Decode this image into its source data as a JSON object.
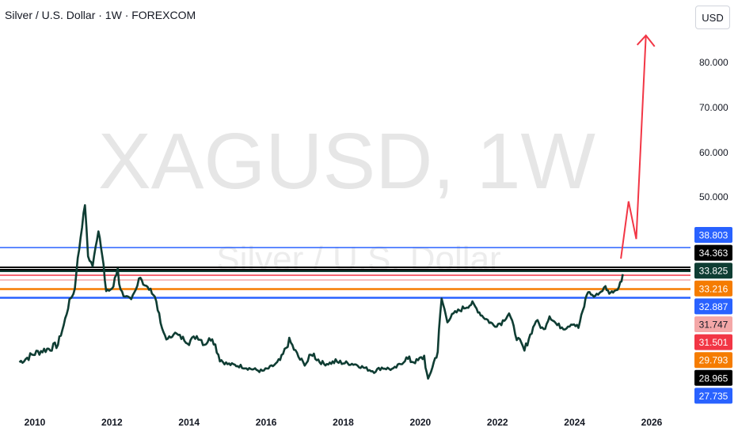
{
  "header": {
    "title": "Silver / U.S. Dollar · 1W · FOREXCOM",
    "currency_button": "USD"
  },
  "watermark": {
    "symbol": "XAGUSD, 1W",
    "name": "Silver / U.S. Dollar"
  },
  "colors": {
    "price_line": "#0f3d33",
    "blue_level": "#2962ff",
    "black_level": "#000000",
    "pink_level": "#f4a7a7",
    "red_level": "#f23645",
    "orange_level": "#f57c00",
    "arrow": "#f23645"
  },
  "chart_data": {
    "type": "line",
    "title": "Silver / U.S. Dollar · 1W · FOREXCOM",
    "x_ticks": [
      "2010",
      "2012",
      "2014",
      "2016",
      "2018",
      "2020",
      "2022",
      "2024",
      "2026"
    ],
    "y_ticks": [
      "80.000",
      "70.000",
      "60.000",
      "50.000"
    ],
    "ylim_note": "non-linear price scale; visible range approx 10 to 90 USD",
    "series": [
      {
        "points": [
          [
            2009.6,
            17.0
          ],
          [
            2009.8,
            17.6
          ],
          [
            2010.0,
            18.2
          ],
          [
            2010.2,
            18.6
          ],
          [
            2010.4,
            18.9
          ],
          [
            2010.6,
            19.4
          ],
          [
            2010.75,
            23.0
          ],
          [
            2010.9,
            28.0
          ],
          [
            2011.0,
            30.0
          ],
          [
            2011.15,
            38.5
          ],
          [
            2011.3,
            48.4
          ],
          [
            2011.38,
            37.0
          ],
          [
            2011.5,
            35.0
          ],
          [
            2011.65,
            42.5
          ],
          [
            2011.75,
            37.5
          ],
          [
            2011.85,
            31.0
          ],
          [
            2012.0,
            32.0
          ],
          [
            2012.15,
            34.5
          ],
          [
            2012.3,
            29.5
          ],
          [
            2012.5,
            28.0
          ],
          [
            2012.7,
            34.0
          ],
          [
            2012.85,
            33.0
          ],
          [
            2013.0,
            31.5
          ],
          [
            2013.15,
            28.0
          ],
          [
            2013.3,
            22.0
          ],
          [
            2013.45,
            20.0
          ],
          [
            2013.6,
            21.5
          ],
          [
            2013.8,
            20.5
          ],
          [
            2014.0,
            19.8
          ],
          [
            2014.2,
            20.8
          ],
          [
            2014.4,
            19.5
          ],
          [
            2014.6,
            20.5
          ],
          [
            2014.8,
            17.5
          ],
          [
            2015.0,
            16.5
          ],
          [
            2015.3,
            16.0
          ],
          [
            2015.6,
            15.2
          ],
          [
            2015.9,
            14.5
          ],
          [
            2016.1,
            15.5
          ],
          [
            2016.4,
            17.5
          ],
          [
            2016.6,
            20.0
          ],
          [
            2016.8,
            18.0
          ],
          [
            2017.0,
            16.5
          ],
          [
            2017.2,
            18.2
          ],
          [
            2017.5,
            16.5
          ],
          [
            2017.8,
            17.0
          ],
          [
            2018.0,
            16.8
          ],
          [
            2018.3,
            16.5
          ],
          [
            2018.6,
            15.2
          ],
          [
            2018.8,
            14.5
          ],
          [
            2019.0,
            15.5
          ],
          [
            2019.3,
            15.0
          ],
          [
            2019.6,
            17.5
          ],
          [
            2019.9,
            17.0
          ],
          [
            2020.1,
            17.8
          ],
          [
            2020.2,
            12.0
          ],
          [
            2020.35,
            17.0
          ],
          [
            2020.45,
            18.5
          ],
          [
            2020.55,
            28.5
          ],
          [
            2020.7,
            24.0
          ],
          [
            2020.9,
            25.5
          ],
          [
            2021.1,
            26.5
          ],
          [
            2021.35,
            27.5
          ],
          [
            2021.6,
            25.0
          ],
          [
            2021.9,
            23.0
          ],
          [
            2022.1,
            23.5
          ],
          [
            2022.3,
            25.5
          ],
          [
            2022.5,
            20.5
          ],
          [
            2022.7,
            18.5
          ],
          [
            2022.85,
            21.0
          ],
          [
            2023.0,
            24.0
          ],
          [
            2023.2,
            22.0
          ],
          [
            2023.35,
            25.0
          ],
          [
            2023.55,
            23.0
          ],
          [
            2023.75,
            22.5
          ],
          [
            2023.95,
            23.5
          ],
          [
            2024.1,
            22.5
          ],
          [
            2024.25,
            27.0
          ],
          [
            2024.35,
            31.0
          ],
          [
            2024.5,
            29.0
          ],
          [
            2024.65,
            30.5
          ],
          [
            2024.8,
            32.5
          ],
          [
            2024.9,
            30.5
          ],
          [
            2025.0,
            31.0
          ],
          [
            2025.15,
            32.5
          ],
          [
            2025.25,
            33.9
          ]
        ]
      }
    ],
    "projection_arrow": [
      [
        2025.2,
        36.5
      ],
      [
        2025.4,
        49.0
      ],
      [
        2025.6,
        40.5
      ],
      [
        2025.85,
        86.0
      ]
    ],
    "levels": [
      {
        "label": "38.803",
        "color": "#2962ff",
        "value": 38.803
      },
      {
        "label": "34.363",
        "color": "#000000",
        "value": 34.363
      },
      {
        "label": "33.825",
        "color": "#0f3d33",
        "value": 33.825
      },
      {
        "label": "33.216",
        "color": "#f57c00",
        "value": 33.216
      },
      {
        "label": "32.887",
        "color": "#2962ff",
        "value": 32.887
      },
      {
        "label": "31.747",
        "color": "#f4a7a7",
        "value": 31.747
      },
      {
        "label": "31.501",
        "color": "#f23645",
        "value": 31.501
      },
      {
        "label": "29.793",
        "color": "#f57c00",
        "value": 29.793
      },
      {
        "label": "28.965",
        "color": "#000000",
        "value": 28.965
      },
      {
        "label": "27.735",
        "color": "#2962ff",
        "value": 27.735
      }
    ]
  }
}
